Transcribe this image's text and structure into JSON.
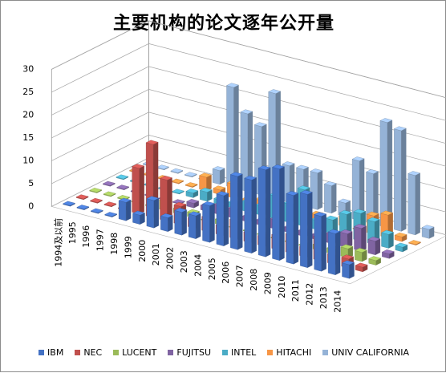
{
  "chart_data": {
    "type": "bar",
    "subtype": "3d-column",
    "title": "主要机构的论文逐年公开量",
    "categories": [
      "1994及以前",
      "1995",
      "1996",
      "1997",
      "1998",
      "1999",
      "2000",
      "2001",
      "2002",
      "2003",
      "2004",
      "2005",
      "2006",
      "2007",
      "2008",
      "2009",
      "2010",
      "2011",
      "2012",
      "2013",
      "2014"
    ],
    "yticks": [
      "0",
      "5",
      "10",
      "15",
      "20",
      "25",
      "30"
    ],
    "ylim": [
      0,
      30
    ],
    "legend_position": "bottom",
    "gridlines": true,
    "series": [
      {
        "name": "IBM",
        "color": "#4472C4",
        "values": [
          0,
          0,
          0,
          0,
          4,
          2,
          6,
          3,
          5,
          5,
          8,
          11,
          16,
          16,
          19,
          20,
          15,
          16,
          12,
          9,
          3
        ]
      },
      {
        "name": "NEC",
        "color": "#C0504D",
        "values": [
          0,
          0,
          0,
          0,
          10,
          16,
          9,
          4,
          2,
          3,
          2,
          4,
          2,
          2,
          3,
          4,
          2,
          5,
          2,
          2,
          1
        ]
      },
      {
        "name": "LUCENT",
        "color": "#9BBB59",
        "values": [
          0,
          0,
          0,
          0,
          0,
          2,
          1,
          1,
          0,
          1,
          0,
          0,
          0,
          0,
          0,
          0,
          1,
          1,
          2,
          2,
          1
        ]
      },
      {
        "name": "FUJITSU",
        "color": "#8064A2",
        "values": [
          0,
          0,
          0,
          0,
          0,
          0,
          1,
          1,
          2,
          2,
          1,
          1,
          2,
          1,
          1,
          1,
          2,
          3,
          5,
          3,
          1
        ]
      },
      {
        "name": "INTEL",
        "color": "#4BACC6",
        "values": [
          0,
          0,
          0,
          0,
          0,
          1,
          2,
          1,
          1,
          2,
          2,
          5,
          4,
          8,
          2,
          3,
          5,
          6,
          5,
          3,
          1
        ]
      },
      {
        "name": "HITACHI",
        "color": "#F79646",
        "values": [
          0,
          0,
          0,
          0,
          0,
          3,
          1,
          3,
          0,
          1,
          1,
          1,
          0,
          1,
          0,
          2,
          0,
          4,
          5,
          1,
          0
        ]
      },
      {
        "name": "UNIV CALIFORNIA",
        "color": "#95B3D7",
        "values": [
          0,
          0,
          0,
          0,
          0,
          3,
          22,
          17,
          15,
          23,
          8,
          8,
          8,
          6,
          3,
          13,
          11,
          23,
          22,
          13,
          2
        ]
      }
    ]
  }
}
